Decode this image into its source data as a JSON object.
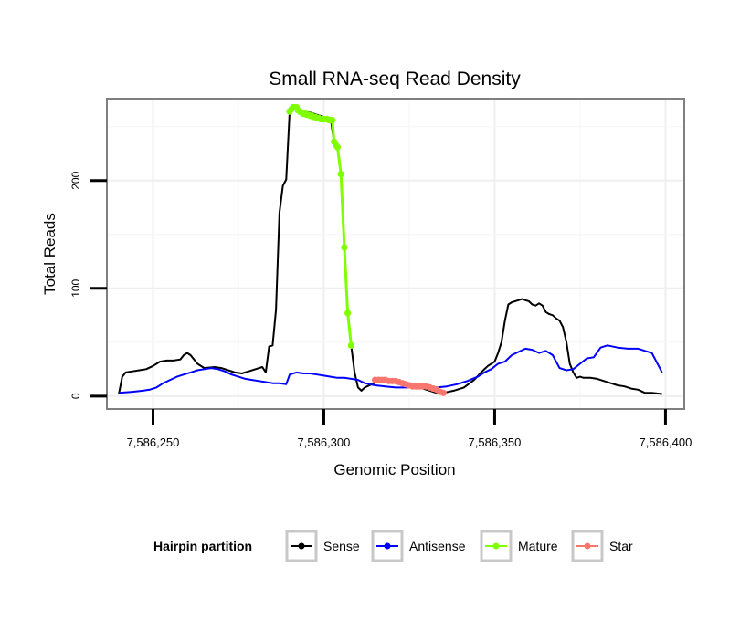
{
  "chart_data": {
    "type": "line",
    "title": "Small RNA-seq Read Density",
    "xlabel": "Genomic Position",
    "ylabel": "Total Reads",
    "xlim": [
      7586236.5,
      7586405.5
    ],
    "ylim": [
      -12,
      276
    ],
    "x_ticks": [
      7586250,
      7586300,
      7586350,
      7586400
    ],
    "x_tick_labels": [
      "7,586,250",
      "7,586,300",
      "7,586,350",
      "7,586,400"
    ],
    "y_ticks": [
      0,
      100,
      200
    ],
    "y_tick_labels": [
      "0",
      "100",
      "200"
    ],
    "grid": true,
    "legend": {
      "title": "Hairpin partition",
      "position": "bottom",
      "entries": [
        "Sense",
        "Antisense",
        "Mature",
        "Star"
      ]
    },
    "series": [
      {
        "name": "Sense",
        "color": "#000000",
        "x": [
          7586240,
          7586241,
          7586242,
          7586244,
          7586246,
          7586248,
          7586250,
          7586252,
          7586254,
          7586256,
          7586258,
          7586259,
          7586260,
          7586261,
          7586263,
          7586265,
          7586268,
          7586270,
          7586272,
          7586274,
          7586276,
          7586278,
          7586280,
          7586282,
          7586283,
          7586284,
          7586285,
          7586286,
          7586287,
          7586288,
          7586289,
          7586290,
          7586291,
          7586292,
          7586294,
          7586296,
          7586298,
          7586300,
          7586302,
          7586303,
          7586304,
          7586305,
          7586306,
          7586307,
          7586308,
          7586309,
          7586310,
          7586311,
          7586312,
          7586314,
          7586316,
          7586318,
          7586320,
          7586322,
          7586325,
          7586328,
          7586331,
          7586333,
          7586335,
          7586338,
          7586341,
          7586344,
          7586346,
          7586348,
          7586350,
          7586351,
          7586352,
          7586353,
          7586354,
          7586355,
          7586356,
          7586357,
          7586358,
          7586359,
          7586360,
          7586361,
          7586362,
          7586363,
          7586364,
          7586365,
          7586366,
          7586367,
          7586368,
          7586369,
          7586370,
          7586371,
          7586372,
          7586373,
          7586374,
          7586375,
          7586376,
          7586377,
          7586378,
          7586380,
          7586382,
          7586384,
          7586386,
          7586388,
          7586390,
          7586392,
          7586394,
          7586396,
          7586399
        ],
        "values": [
          2,
          18,
          22,
          23,
          24,
          25,
          28,
          32,
          33,
          33,
          34,
          38,
          40,
          38,
          30,
          26,
          27,
          26,
          24,
          22,
          21,
          23,
          25,
          27,
          22,
          46,
          47,
          80,
          170,
          195,
          201,
          265,
          268,
          266,
          264,
          263,
          261,
          259,
          258,
          235,
          230,
          205,
          137,
          77,
          47,
          22,
          8,
          5,
          8,
          11,
          14,
          15,
          14,
          12,
          10,
          8,
          5,
          3,
          3,
          5,
          8,
          15,
          22,
          28,
          32,
          40,
          50,
          70,
          85,
          87,
          88,
          89,
          90,
          89,
          88,
          85,
          84,
          86,
          84,
          78,
          76,
          75,
          72,
          70,
          64,
          50,
          30,
          22,
          17,
          18,
          17,
          17,
          17,
          16,
          14,
          12,
          10,
          9,
          7,
          6,
          3,
          3,
          2
        ]
      },
      {
        "name": "Antisense",
        "color": "#0000ff",
        "x": [
          7586240,
          7586244,
          7586247,
          7586249,
          7586251,
          7586253,
          7586255,
          7586257,
          7586259,
          7586261,
          7586263,
          7586265,
          7586267,
          7586269,
          7586271,
          7586273,
          7586275,
          7586277,
          7586279,
          7586281,
          7586283,
          7586285,
          7586287,
          7586289,
          7586290,
          7586292,
          7586294,
          7586296,
          7586298,
          7586300,
          7586302,
          7586304,
          7586306,
          7586308,
          7586310,
          7586312,
          7586315,
          7586318,
          7586321,
          7586324,
          7586327,
          7586330,
          7586333,
          7586336,
          7586339,
          7586342,
          7586345,
          7586347,
          7586349,
          7586351,
          7586353,
          7586355,
          7586357,
          7586359,
          7586361,
          7586363,
          7586365,
          7586367,
          7586369,
          7586371,
          7586373,
          7586375,
          7586377,
          7586379,
          7586381,
          7586383,
          7586386,
          7586389,
          7586392,
          7586394,
          7586396,
          7586398,
          7586399
        ],
        "values": [
          3,
          4,
          5,
          6,
          8,
          12,
          15,
          18,
          20,
          22,
          24,
          25,
          26,
          25,
          23,
          20,
          18,
          16,
          15,
          14,
          13,
          12,
          12,
          11,
          20,
          22,
          21,
          21,
          20,
          19,
          18,
          17,
          17,
          16,
          15,
          12,
          10,
          9,
          8,
          8,
          8,
          8,
          8,
          9,
          11,
          14,
          18,
          22,
          25,
          30,
          32,
          38,
          41,
          44,
          43,
          40,
          42,
          38,
          26,
          24,
          25,
          30,
          35,
          36,
          45,
          47,
          45,
          44,
          44,
          42,
          40,
          28,
          22
        ]
      },
      {
        "name": "Mature",
        "color": "#7fff00",
        "x": [
          7586290,
          7586290.5,
          7586291,
          7586291.5,
          7586292,
          7586292.5,
          7586293,
          7586293.5,
          7586294,
          7586294.5,
          7586295,
          7586295.5,
          7586296,
          7586296.5,
          7586297,
          7586297.5,
          7586298,
          7586298.5,
          7586299,
          7586299.5,
          7586300,
          7586300.5,
          7586301,
          7586301.5,
          7586302,
          7586302.5,
          7586303,
          7586303.5,
          7586304,
          7586305,
          7586306,
          7586307,
          7586308
        ],
        "values": [
          264,
          266,
          268,
          268,
          268,
          265,
          264,
          263,
          262,
          262,
          261,
          261,
          260,
          260,
          259,
          259,
          258,
          258,
          257,
          257,
          257,
          257,
          257,
          256,
          256,
          256,
          236,
          233,
          231,
          206,
          138,
          77,
          47
        ]
      },
      {
        "name": "Star",
        "color": "#f8766d",
        "x": [
          7586315,
          7586316,
          7586317,
          7586318,
          7586319,
          7586320,
          7586321,
          7586322,
          7586323,
          7586324,
          7586325,
          7586326,
          7586327,
          7586328,
          7586329,
          7586330,
          7586331,
          7586332,
          7586333,
          7586334,
          7586335
        ],
        "values": [
          15,
          15,
          15,
          15,
          14,
          14,
          14,
          13,
          12,
          11,
          10,
          9,
          9,
          9,
          9,
          9,
          8,
          7,
          6,
          4,
          3
        ]
      }
    ]
  }
}
